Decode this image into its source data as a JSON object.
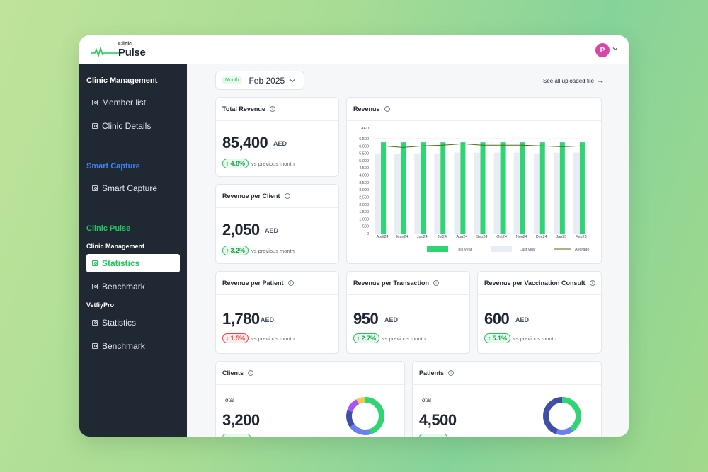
{
  "app": {
    "logo_small": "Clinic",
    "logo_big": "Pulse",
    "avatar_letter": "P"
  },
  "sidebar": {
    "section1": "Clinic Management",
    "items1": [
      {
        "label": "Member list"
      },
      {
        "label": "Clinic Details"
      }
    ],
    "section2": "Smart Capture",
    "section2_color": "#3b82f6",
    "items2": [
      {
        "label": "Smart Capture"
      }
    ],
    "section3": "Clinic Pulse",
    "section3_color": "#22c55e",
    "sub1": "Clinic Management",
    "items3": [
      {
        "label": "Statistics",
        "active": true
      },
      {
        "label": "Benchmark"
      }
    ],
    "sub2": "VetfiyPro",
    "items4": [
      {
        "label": "Statistics"
      },
      {
        "label": "Benchmark"
      }
    ]
  },
  "header": {
    "month_tag": "Month",
    "month_value": "Feb 2025",
    "see_all": "See all uploaded file"
  },
  "kpis": {
    "total_revenue": {
      "title": "Total Revenue",
      "value": "85,400",
      "unit": "AED",
      "change": "4.8%",
      "trend": "up",
      "note": "vs previous month"
    },
    "revenue_per_client": {
      "title": "Revenue per Client",
      "value": "2,050",
      "unit": "AED",
      "change": "3.2%",
      "trend": "up",
      "note": "vs previous month"
    },
    "revenue_per_patient": {
      "title": "Revenue per Patient",
      "value": "1,780",
      "unit": "AED",
      "change": "1.5%",
      "trend": "down",
      "note": "vs previous month"
    },
    "revenue_per_transaction": {
      "title": "Revenue per Transaction",
      "value": "950",
      "unit": "AED",
      "change": "2.7%",
      "trend": "up",
      "note": "vs previous month"
    },
    "revenue_per_vaccination": {
      "title": "Revenue per Vaccination Consult",
      "value": "600",
      "unit": "AED",
      "change": "5.1%",
      "trend": "up",
      "note": "vs previous month"
    }
  },
  "arrows": {
    "up": "↑",
    "down": "↓"
  },
  "revenue_card": {
    "title": "Revenue"
  },
  "chart_data": {
    "type": "bar",
    "title": "Revenue",
    "ylabel": "AED",
    "ylim": [
      0,
      6500
    ],
    "yticks": [
      "0",
      "500",
      "1,000",
      "1,500",
      "2,000",
      "2,500",
      "3,000",
      "3,500",
      "4,000",
      "4,500",
      "5,000",
      "5,500",
      "6,000",
      "6,500"
    ],
    "categories": [
      "April24",
      "May24",
      "Jun24",
      "Jul24",
      "Aug24",
      "Sep24",
      "Oct24",
      "Nov24",
      "Dec24",
      "Jan25",
      "Feb25"
    ],
    "series": [
      {
        "name": "This year",
        "type": "bar",
        "color": "#2ed573",
        "values": [
          6250,
          6250,
          6250,
          6250,
          6250,
          6250,
          6250,
          6250,
          6250,
          6250,
          6250
        ]
      },
      {
        "name": "Last year",
        "type": "bar",
        "color": "#e8ecf4",
        "values": [
          5500,
          5450,
          5500,
          5500,
          5550,
          5550,
          5550,
          5550,
          5500,
          5550,
          5550
        ]
      },
      {
        "name": "Average",
        "type": "line",
        "color": "#4d6b1f",
        "values": [
          6000,
          5900,
          6000,
          6050,
          6150,
          6050,
          6050,
          6050,
          6000,
          5950,
          6000
        ]
      }
    ],
    "grid": false,
    "legend": "bottom"
  },
  "clients": {
    "title": "Clients",
    "total_label": "Total",
    "total_value": "3,200",
    "donut": [
      {
        "value": 45,
        "color": "#2ed573"
      },
      {
        "value": 20,
        "color": "#6b7ff0"
      },
      {
        "value": 15,
        "color": "#3f4fa8"
      },
      {
        "value": 12,
        "color": "#a855f7"
      },
      {
        "value": 8,
        "color": "#f5c84b"
      }
    ]
  },
  "patients": {
    "title": "Patients",
    "total_label": "Total",
    "total_value": "4,500",
    "donut": [
      {
        "value": 40,
        "color": "#2ed573"
      },
      {
        "value": 15,
        "color": "#6b7ff0"
      },
      {
        "value": 45,
        "color": "#3f4fa8"
      }
    ]
  }
}
